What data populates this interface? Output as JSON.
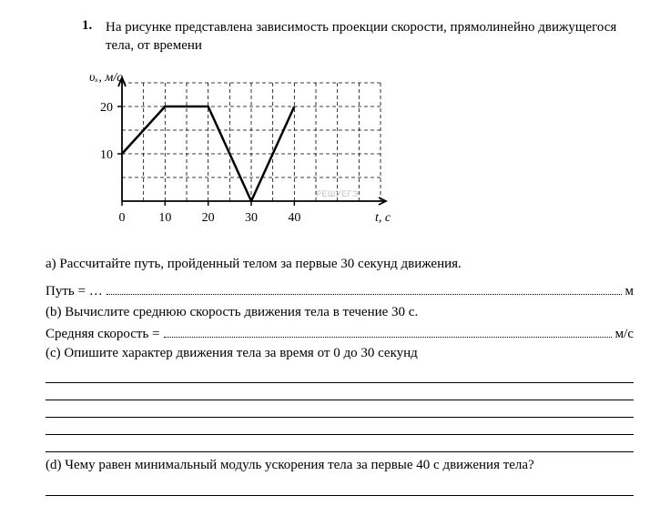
{
  "problem": {
    "number": "1.",
    "text": "На рисунке представлена зависимость проекции скорости, прямолинейно движущегося тела, от времени"
  },
  "chart": {
    "type": "line",
    "y_axis_label": "υₓ, м/c",
    "x_axis_label": "t, c",
    "watermark": "РЕШУЕГЭ",
    "x_ticks": [
      0,
      10,
      20,
      30,
      40
    ],
    "y_ticks": [
      10,
      20
    ],
    "x_range": [
      0,
      60
    ],
    "y_range": [
      0,
      25
    ],
    "grid_x_step": 5,
    "grid_y_step": 5,
    "line_color": "#000000",
    "line_width": 2.5,
    "grid_color": "#000000",
    "grid_dash": "4,3",
    "axis_color": "#000000",
    "background": "#ffffff",
    "tick_fontsize": 14,
    "label_fontsize": 14,
    "points": [
      {
        "x": 0,
        "y": 10
      },
      {
        "x": 10,
        "y": 20
      },
      {
        "x": 20,
        "y": 20
      },
      {
        "x": 30,
        "y": 0
      },
      {
        "x": 40,
        "y": 20
      }
    ]
  },
  "questions": {
    "a": {
      "prompt": "a) Рассчитайте путь, пройденный телом за первые 30 секунд движения.",
      "answer_label": "Путь = …",
      "unit": "м"
    },
    "b": {
      "prompt": "(b) Вычислите среднюю скорость движения тела в течение 30 с.",
      "answer_label": "Средняя скорость = ",
      "unit": "м/с"
    },
    "c": {
      "prompt": "(c) Опишите характер движения тела за время от 0 до 30 секунд"
    },
    "d": {
      "prompt": "(d) Чему равен минимальный модуль ускорения тела за первые 40 c движения тела?"
    }
  }
}
